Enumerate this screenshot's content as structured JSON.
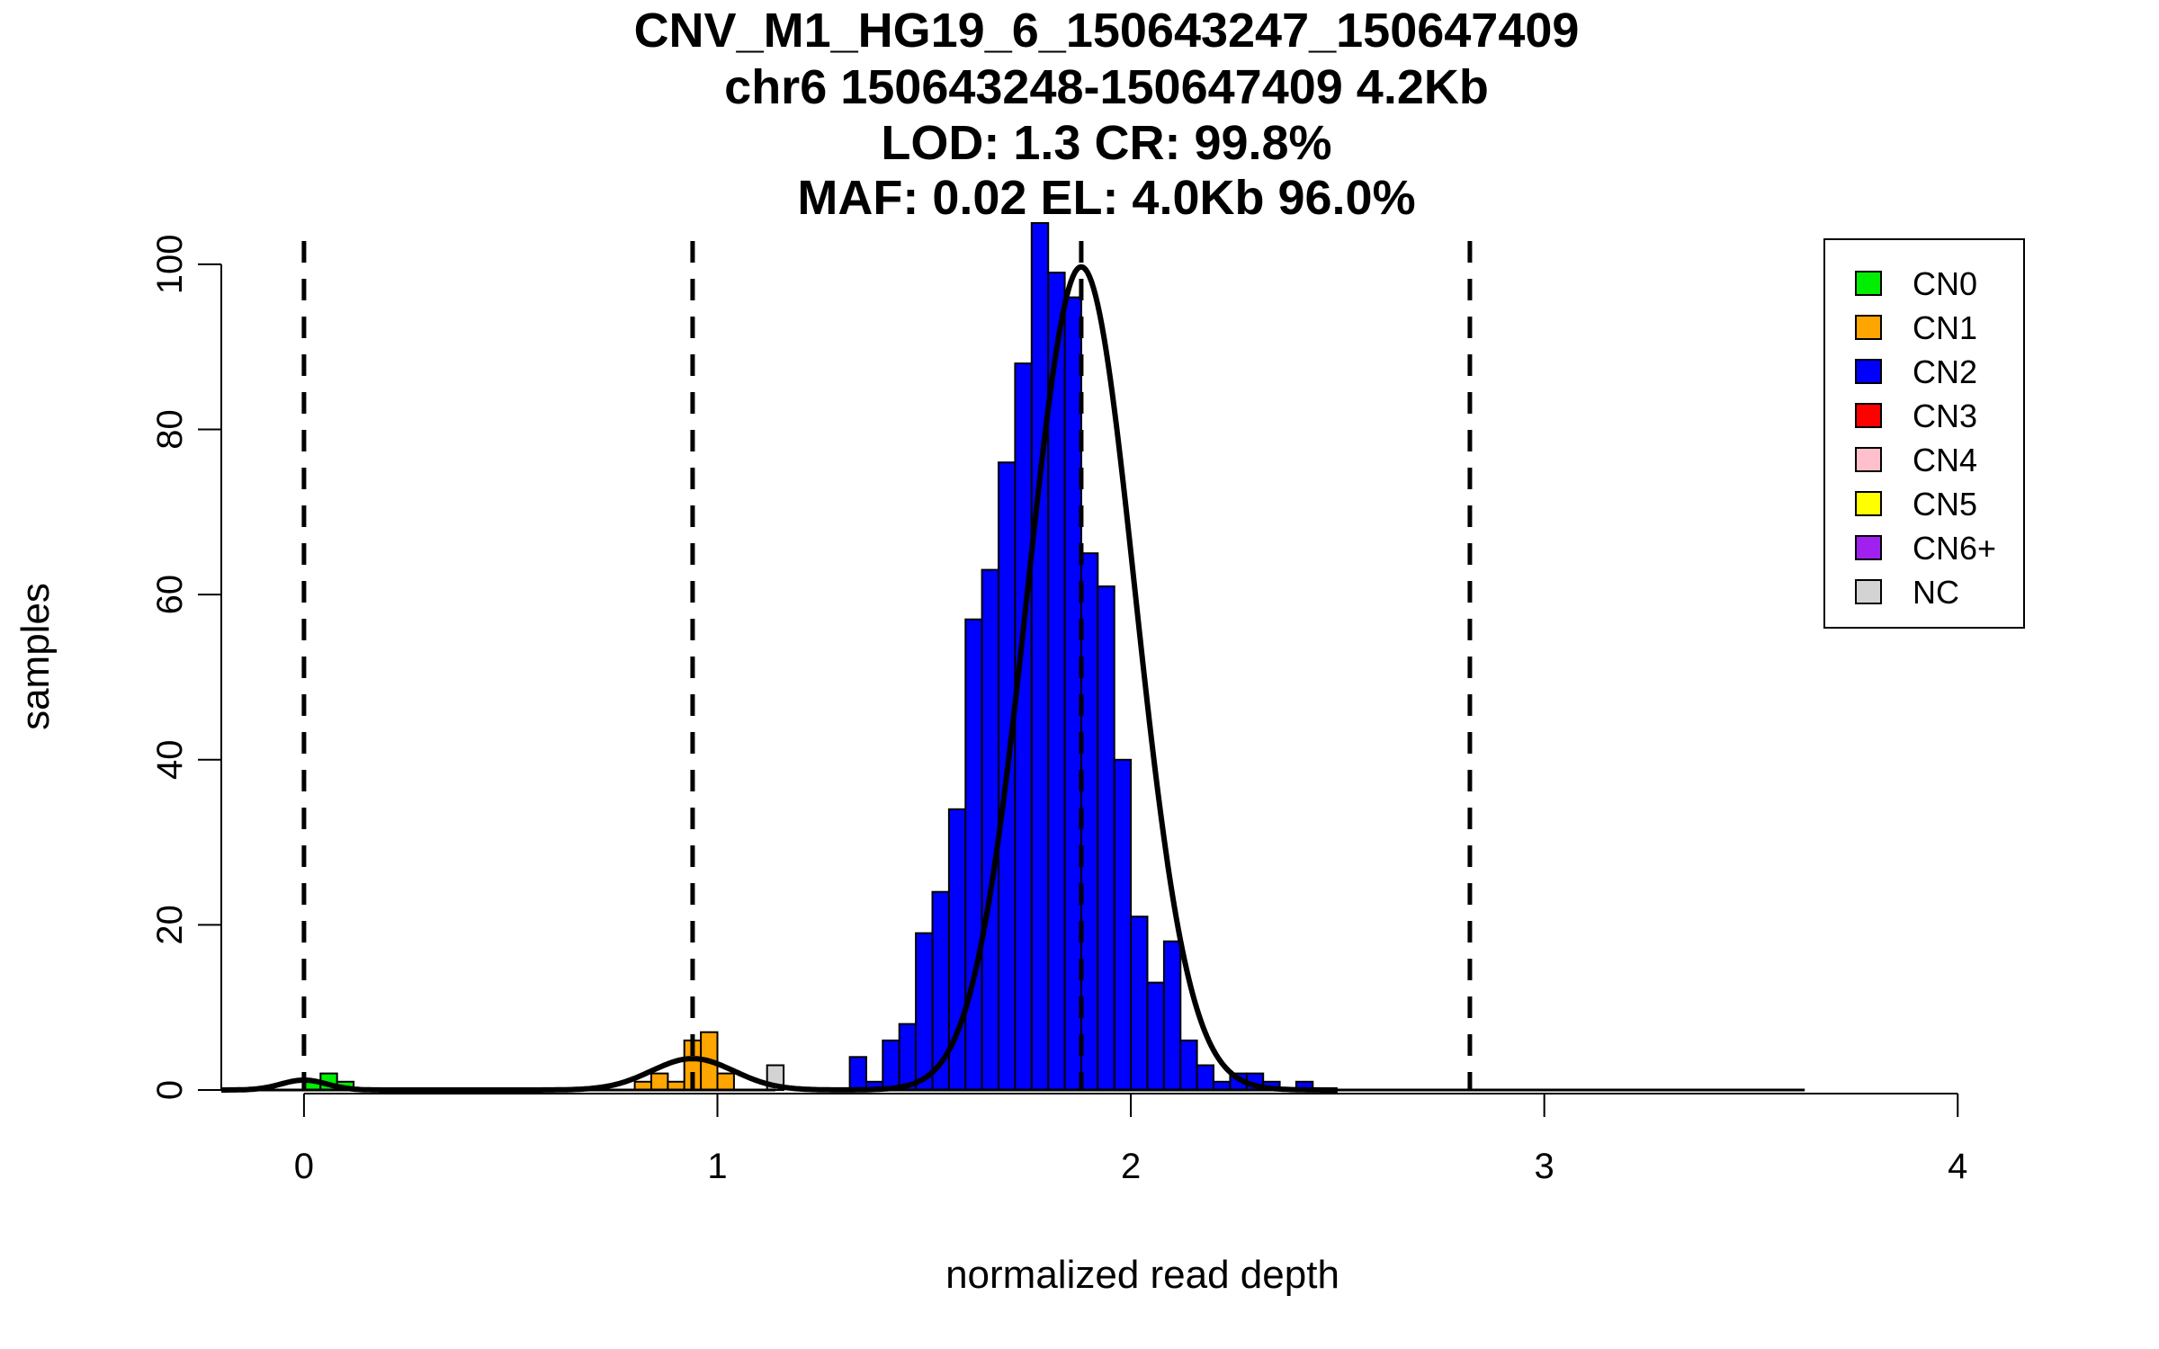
{
  "chart_data": {
    "type": "bar",
    "title_lines": [
      "CNV_M1_HG19_6_150643247_150647409",
      "chr6 150643248-150647409 4.2Kb",
      "LOD: 1.3 CR: 99.8%",
      "MAF: 0.02 EL: 4.0Kb 96.0%"
    ],
    "xlabel": "normalized read depth",
    "ylabel": "samples",
    "xlim": [
      -0.2,
      4.13
    ],
    "ylim": [
      0,
      105
    ],
    "x_ticks": [
      0,
      1,
      2,
      3,
      4
    ],
    "y_ticks": [
      0,
      20,
      40,
      60,
      80,
      100
    ],
    "bin_width": 0.04,
    "bars": [
      {
        "x": 0.02,
        "y": 1,
        "class": "CN0"
      },
      {
        "x": 0.06,
        "y": 2,
        "class": "CN0"
      },
      {
        "x": 0.1,
        "y": 1,
        "class": "CN0"
      },
      {
        "x": 0.82,
        "y": 1,
        "class": "CN1"
      },
      {
        "x": 0.86,
        "y": 2,
        "class": "CN1"
      },
      {
        "x": 0.9,
        "y": 1,
        "class": "CN1"
      },
      {
        "x": 0.94,
        "y": 6,
        "class": "CN1"
      },
      {
        "x": 0.98,
        "y": 7,
        "class": "CN1"
      },
      {
        "x": 1.02,
        "y": 2,
        "class": "CN1"
      },
      {
        "x": 1.14,
        "y": 3,
        "class": "NC"
      },
      {
        "x": 1.34,
        "y": 4,
        "class": "CN2"
      },
      {
        "x": 1.38,
        "y": 1,
        "class": "CN2"
      },
      {
        "x": 1.42,
        "y": 6,
        "class": "CN2"
      },
      {
        "x": 1.46,
        "y": 8,
        "class": "CN2"
      },
      {
        "x": 1.5,
        "y": 19,
        "class": "CN2"
      },
      {
        "x": 1.54,
        "y": 24,
        "class": "CN2"
      },
      {
        "x": 1.58,
        "y": 34,
        "class": "CN2"
      },
      {
        "x": 1.62,
        "y": 57,
        "class": "CN2"
      },
      {
        "x": 1.66,
        "y": 63,
        "class": "CN2"
      },
      {
        "x": 1.7,
        "y": 76,
        "class": "CN2"
      },
      {
        "x": 1.74,
        "y": 88,
        "class": "CN2"
      },
      {
        "x": 1.78,
        "y": 105,
        "class": "CN2"
      },
      {
        "x": 1.82,
        "y": 99,
        "class": "CN2"
      },
      {
        "x": 1.86,
        "y": 96,
        "class": "CN2"
      },
      {
        "x": 1.9,
        "y": 65,
        "class": "CN2"
      },
      {
        "x": 1.94,
        "y": 61,
        "class": "CN2"
      },
      {
        "x": 1.98,
        "y": 40,
        "class": "CN2"
      },
      {
        "x": 2.02,
        "y": 21,
        "class": "CN2"
      },
      {
        "x": 2.06,
        "y": 13,
        "class": "CN2"
      },
      {
        "x": 2.1,
        "y": 18,
        "class": "CN2"
      },
      {
        "x": 2.14,
        "y": 6,
        "class": "CN2"
      },
      {
        "x": 2.18,
        "y": 3,
        "class": "CN2"
      },
      {
        "x": 2.22,
        "y": 1,
        "class": "CN2"
      },
      {
        "x": 2.26,
        "y": 2,
        "class": "CN2"
      },
      {
        "x": 2.3,
        "y": 2,
        "class": "CN2"
      },
      {
        "x": 2.34,
        "y": 1,
        "class": "CN2"
      },
      {
        "x": 2.42,
        "y": 1,
        "class": "CN2"
      }
    ],
    "vlines": [
      0,
      0.94,
      1.88,
      2.82
    ],
    "fit_components": [
      {
        "mean": 0.0,
        "sd": 0.055,
        "height": 1.2
      },
      {
        "mean": 0.94,
        "sd": 0.1,
        "height": 3.8
      },
      {
        "mean": 1.88,
        "sd": 0.13,
        "height": 99.7
      }
    ],
    "baseline_segments": [
      [
        -0.2,
        0.21
      ],
      [
        0.47,
        1.14
      ],
      [
        1.3,
        3.63
      ]
    ],
    "legend": {
      "placement": "top-right",
      "entries": [
        {
          "label": "CN0",
          "color": "#00ee00"
        },
        {
          "label": "CN1",
          "color": "#ffa500"
        },
        {
          "label": "CN2",
          "color": "#0000ff"
        },
        {
          "label": "CN3",
          "color": "#ff0000"
        },
        {
          "label": "CN4",
          "color": "#ffc0cb"
        },
        {
          "label": "CN5",
          "color": "#ffff00"
        },
        {
          "label": "CN6+",
          "color": "#a020f0"
        },
        {
          "label": "NC",
          "color": "#d3d3d3"
        }
      ]
    }
  }
}
